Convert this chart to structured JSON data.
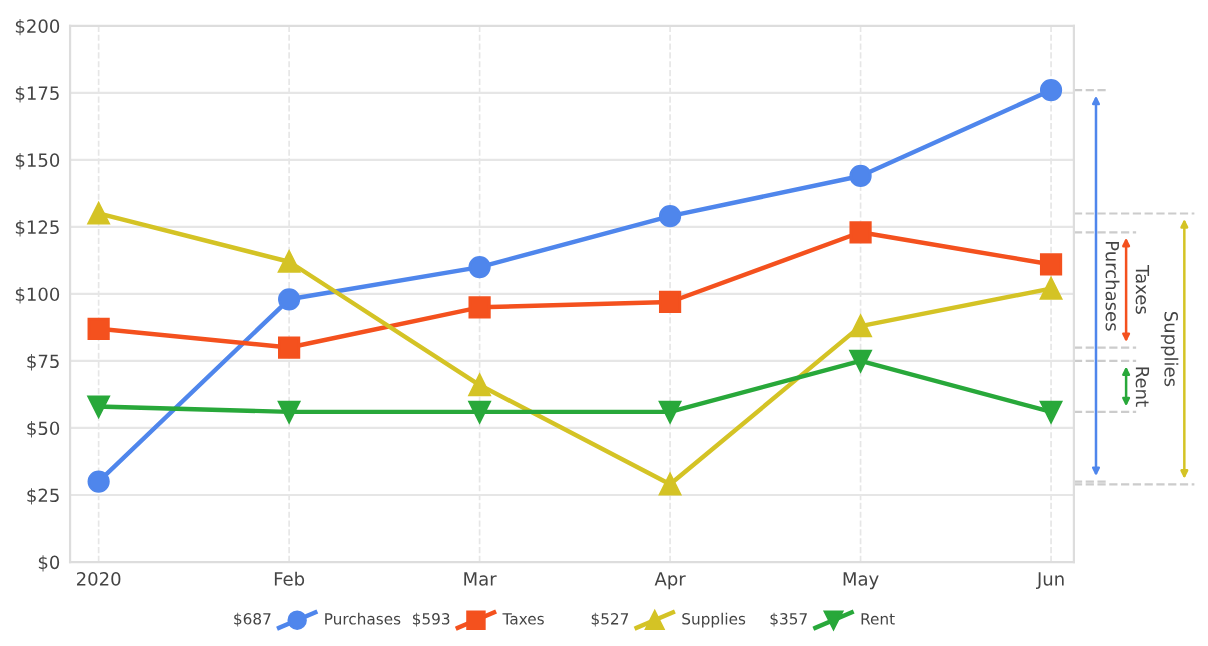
{
  "chart_data": {
    "type": "line",
    "categories": [
      "2020",
      "Feb",
      "Mar",
      "Apr",
      "May",
      "Jun"
    ],
    "series": [
      {
        "name": "Purchases",
        "color": "#4f86ec",
        "marker": "circle",
        "values": [
          30,
          98,
          110,
          129,
          144,
          176
        ]
      },
      {
        "name": "Taxes",
        "color": "#f4511e",
        "marker": "square",
        "values": [
          87,
          80,
          95,
          97,
          123,
          111
        ]
      },
      {
        "name": "Supplies",
        "color": "#d4c325",
        "marker": "triangle",
        "values": [
          130,
          112,
          66,
          29,
          88,
          102
        ]
      },
      {
        "name": "Rent",
        "color": "#28a83a",
        "marker": "triangle_down",
        "values": [
          58,
          56,
          56,
          56,
          75,
          56
        ]
      }
    ],
    "ylim": [
      0,
      200
    ],
    "yticks": [
      {
        "value": 0,
        "label": "$0"
      },
      {
        "value": 25,
        "label": "$25"
      },
      {
        "value": 50,
        "label": "$50"
      },
      {
        "value": 75,
        "label": "$75"
      },
      {
        "value": 100,
        "label": "$100"
      },
      {
        "value": 125,
        "label": "$125"
      },
      {
        "value": 150,
        "label": "$150"
      },
      {
        "value": 175,
        "label": "$175"
      },
      {
        "value": 200,
        "label": "$200"
      }
    ],
    "annotations": [
      "Purchases",
      "Taxes",
      "Supplies",
      "Rent",
      "$687",
      "$593",
      "$527",
      "$357"
    ],
    "grid": true,
    "legend": "bottom"
  }
}
